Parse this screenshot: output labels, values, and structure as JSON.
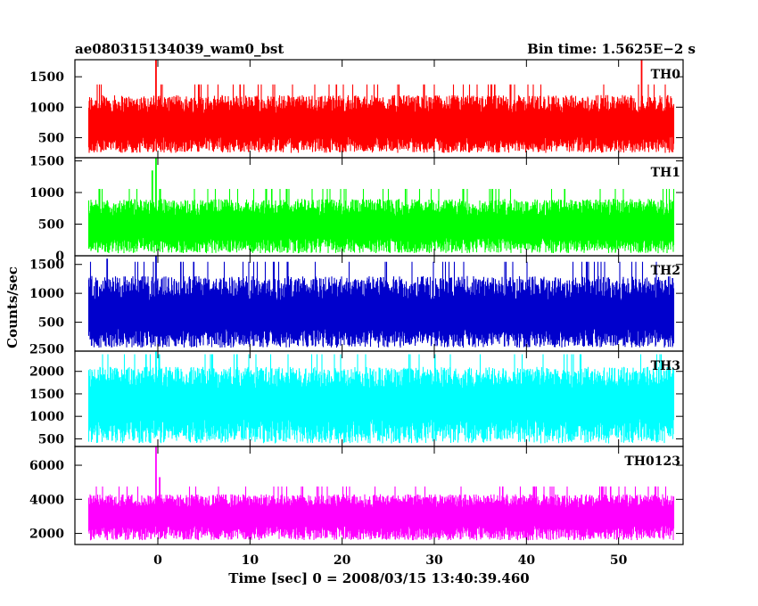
{
  "header": {
    "left_title": "ae080315134039_wam0_bst",
    "right_title": "Bin time: 1.5625E−2 s"
  },
  "chart_data": {
    "type": "line",
    "title": "ae080315134039_wam0_bst",
    "subtitle": "Bin time: 1.5625E−2 s",
    "xlabel": "Time [sec] 0 = 2008/03/15 13:40:39.460",
    "ylabel": "Counts/sec",
    "xlim": [
      -9,
      57
    ],
    "xticks": [
      0,
      10,
      20,
      30,
      40,
      50
    ],
    "x_data_range": [
      -7.5,
      56
    ],
    "bin_time": 0.015625,
    "grid": false,
    "panels": [
      {
        "name": "TH0",
        "color": "#ff0000",
        "ylim": [
          170,
          1780
        ],
        "yticks": [
          500,
          1000,
          1500
        ],
        "baseline": 700,
        "envelope_low": 250,
        "envelope_high": 1200,
        "peaks": [
          {
            "x": -0.2,
            "y": 1780
          },
          {
            "x": 52.5,
            "y": 1780
          }
        ]
      },
      {
        "name": "TH1",
        "color": "#00ff00",
        "ylim": [
          0,
          1550
        ],
        "yticks": [
          0,
          500,
          1000,
          1500
        ],
        "baseline": 450,
        "envelope_low": 40,
        "envelope_high": 900,
        "peaks": [
          {
            "x": -0.2,
            "y": 1550
          },
          {
            "x": -0.6,
            "y": 1350
          }
        ]
      },
      {
        "name": "TH2",
        "color": "#0000cc",
        "ylim": [
          0,
          1650
        ],
        "yticks": [
          500,
          1000,
          1500
        ],
        "baseline": 600,
        "envelope_low": 60,
        "envelope_high": 1300,
        "peaks": [
          {
            "x": -0.2,
            "y": 1650
          },
          {
            "x": -5.5,
            "y": 1600
          }
        ]
      },
      {
        "name": "TH3",
        "color": "#00ffff",
        "ylim": [
          330,
          2450
        ],
        "yticks": [
          500,
          1000,
          1500,
          2000,
          2500
        ],
        "baseline": 1300,
        "envelope_low": 400,
        "envelope_high": 2100,
        "peaks": [
          {
            "x": -0.2,
            "y": 2450
          }
        ]
      },
      {
        "name": "TH0123",
        "color": "#ff00ff",
        "ylim": [
          1350,
          7100
        ],
        "yticks": [
          2000,
          4000,
          6000
        ],
        "baseline": 3000,
        "envelope_low": 1600,
        "envelope_high": 4300,
        "peaks": [
          {
            "x": -0.2,
            "y": 7100
          },
          {
            "x": 0.2,
            "y": 5300
          }
        ]
      }
    ]
  }
}
